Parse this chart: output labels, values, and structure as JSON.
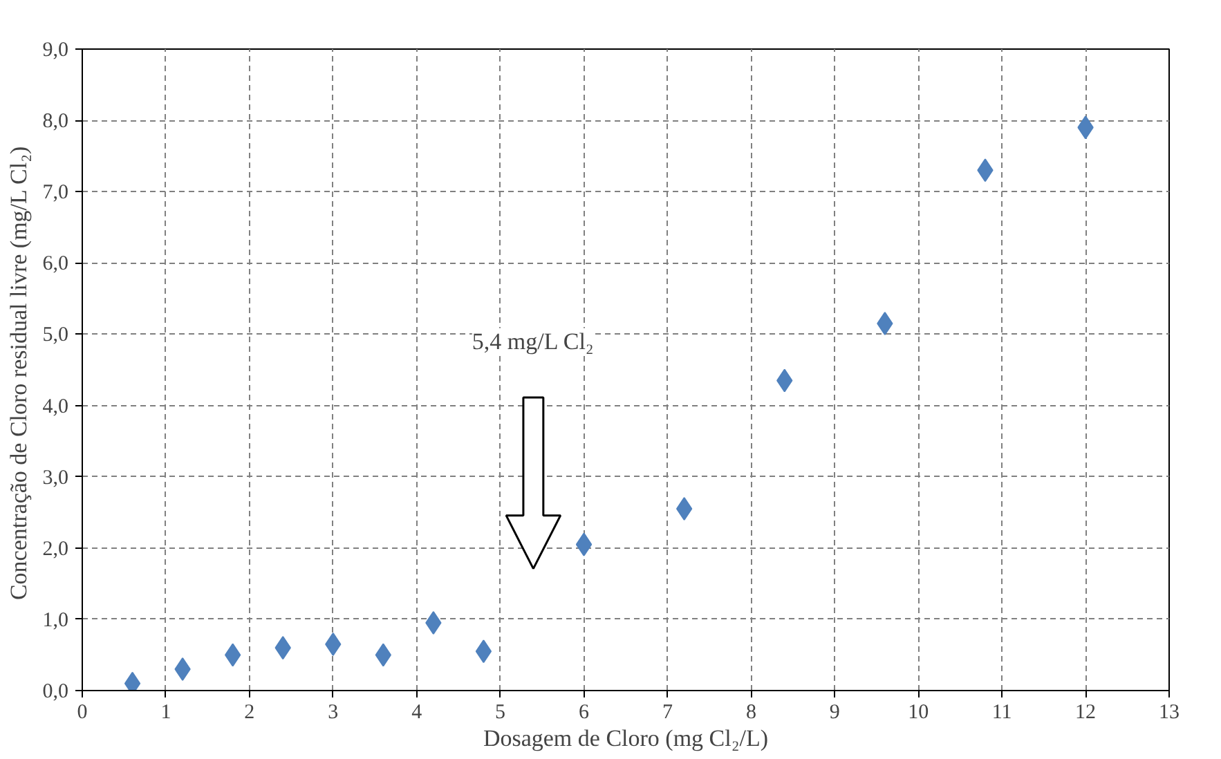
{
  "chart_data": {
    "type": "scatter",
    "xlabel": "Dosagem de Cloro (mg Cl₂/L)",
    "ylabel": "Concentração de Cloro residual livre (mg/L  Cl₂)",
    "x": [
      0.6,
      1.2,
      1.8,
      2.4,
      3.0,
      3.6,
      4.2,
      4.8,
      6.0,
      7.2,
      8.4,
      9.6,
      10.8,
      12.0
    ],
    "series": [
      {
        "color": "#4f81bd",
        "values": [
          0.1,
          0.3,
          0.5,
          0.6,
          0.65,
          0.5,
          0.95,
          0.55,
          2.05,
          2.55,
          4.35,
          5.15,
          7.3,
          7.9
        ]
      }
    ],
    "xlim": [
      0,
      13
    ],
    "xticks": [
      0,
      1,
      2,
      3,
      4,
      5,
      6,
      7,
      8,
      9,
      10,
      11,
      12,
      13
    ],
    "ylim": [
      0,
      9
    ],
    "yticks": [
      {
        "value": 0,
        "label": "0,0"
      },
      {
        "value": 1,
        "label": "1,0"
      },
      {
        "value": 2,
        "label": "2,0"
      },
      {
        "value": 3,
        "label": "3,0"
      },
      {
        "value": 4,
        "label": "4,0"
      },
      {
        "value": 5,
        "label": "5,0"
      },
      {
        "value": 6,
        "label": "6,0"
      },
      {
        "value": 7,
        "label": "7,0"
      },
      {
        "value": 8,
        "label": "8,0"
      },
      {
        "value": 9,
        "label": "9,0"
      }
    ],
    "annotations": [
      "5,4 mg/L Cl₂"
    ],
    "grid": true,
    "marker": "diamond"
  }
}
